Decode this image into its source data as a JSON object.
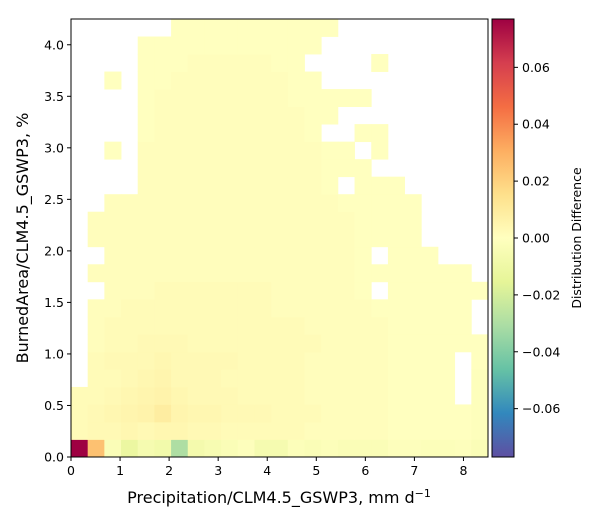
{
  "chart_data": {
    "type": "heatmap",
    "xlabel": "Precipitation/CLM4.5_GSWP3,  mm d",
    "xlabel_sup": "−1",
    "ylabel": "BurnedArea/CLM4.5_GSWP3,  %",
    "colorbar_label": "Distribution Difference",
    "xlim": [
      0,
      8.5
    ],
    "ylim": [
      0,
      4.25
    ],
    "x_ticks": [
      "0",
      "1",
      "2",
      "3",
      "4",
      "5",
      "6",
      "7",
      "8"
    ],
    "y_ticks": [
      "0.0",
      "0.5",
      "1.0",
      "1.5",
      "2.0",
      "2.5",
      "3.0",
      "3.5",
      "4.0"
    ],
    "colorbar_ticks": [
      "0.06",
      "0.04",
      "0.02",
      "0.00",
      "−0.02",
      "−0.04",
      "−0.06"
    ],
    "colorbar_range": [
      -0.077,
      0.077
    ],
    "colormap": "Spectral_r",
    "x_bin_width": 0.34,
    "y_bin_width": 0.17,
    "shape": [
      25,
      25
    ],
    "rows_bottom_to_top": [
      [
        0.077,
        0.025,
        -0.003,
        -0.012,
        -0.006,
        -0.008,
        -0.03,
        -0.007,
        -0.005,
        -0.003,
        -0.001,
        -0.006,
        -0.006,
        -0.002,
        -0.003,
        -0.002,
        -0.003,
        -0.003,
        -0.003,
        -0.001,
        -0.001,
        -0.002,
        -0.002,
        -0.001,
        -0.003
      ],
      [
        0.002,
        0.003,
        0.003,
        0.004,
        0.003,
        0.004,
        0.004,
        0.003,
        0.003,
        0.002,
        0.002,
        0.002,
        0.002,
        0.002,
        0.001,
        0.001,
        0.001,
        0.001,
        0.001,
        0.0,
        0.0,
        0.0,
        0.0,
        0.0,
        -0.001
      ],
      [
        0.002,
        0.003,
        0.004,
        0.005,
        0.006,
        0.009,
        0.005,
        0.004,
        0.004,
        0.003,
        0.003,
        0.003,
        0.002,
        0.002,
        0.002,
        0.001,
        0.001,
        0.001,
        0.001,
        0.0,
        0.0,
        0.0,
        0.0,
        0.0,
        -0.001
      ],
      [
        0.002,
        0.002,
        0.003,
        0.004,
        0.005,
        0.006,
        0.004,
        0.003,
        0.003,
        0.003,
        0.002,
        0.002,
        0.002,
        0.002,
        0.001,
        0.001,
        0.001,
        0.001,
        0.001,
        0.0,
        0.0,
        0.0,
        0.0,
        null,
        -0.001
      ],
      [
        null,
        0.002,
        0.002,
        0.003,
        0.004,
        0.005,
        0.003,
        0.003,
        0.003,
        0.002,
        0.002,
        0.002,
        0.002,
        0.002,
        0.001,
        0.001,
        0.001,
        0.001,
        0.001,
        0.0,
        0.0,
        0.0,
        0.0,
        null,
        -0.001
      ],
      [
        null,
        0.002,
        0.003,
        0.003,
        0.003,
        0.004,
        0.003,
        0.003,
        0.003,
        0.003,
        0.002,
        0.002,
        0.002,
        0.002,
        0.001,
        0.001,
        0.001,
        0.001,
        0.001,
        0.0,
        0.0,
        0.0,
        0.0,
        null,
        0.0
      ],
      [
        null,
        0.001,
        0.002,
        0.002,
        0.003,
        0.003,
        0.003,
        0.002,
        0.002,
        0.002,
        0.002,
        0.002,
        0.002,
        0.002,
        0.002,
        0.001,
        0.001,
        0.001,
        0.001,
        0.0,
        0.0,
        0.0,
        0.0,
        0.0,
        0.0
      ],
      [
        null,
        0.001,
        0.002,
        0.002,
        0.002,
        0.002,
        0.002,
        0.002,
        0.002,
        0.002,
        0.002,
        0.002,
        0.002,
        0.002,
        0.001,
        0.001,
        0.001,
        0.001,
        0.001,
        0.0,
        0.0,
        0.0,
        0.0,
        0.0,
        null
      ],
      [
        null,
        0.001,
        0.001,
        0.002,
        0.002,
        0.002,
        0.002,
        0.002,
        0.002,
        0.002,
        0.002,
        0.002,
        0.001,
        0.001,
        0.001,
        0.001,
        0.001,
        0.001,
        0.0,
        0.0,
        0.0,
        0.0,
        0.0,
        0.0,
        null
      ],
      [
        null,
        null,
        0.001,
        0.001,
        0.001,
        0.002,
        0.002,
        0.002,
        0.002,
        0.002,
        0.002,
        0.002,
        0.001,
        0.001,
        0.001,
        0.001,
        0.001,
        0.0,
        null,
        0.0,
        0.0,
        0.0,
        0.0,
        0.0,
        0.0
      ],
      [
        null,
        0.001,
        0.001,
        0.001,
        0.001,
        0.001,
        0.001,
        0.001,
        0.001,
        0.001,
        0.001,
        0.001,
        0.001,
        0.001,
        0.001,
        0.001,
        0.001,
        0.0,
        0.0,
        0.0,
        0.0,
        0.0,
        0.0,
        0.0,
        null
      ],
      [
        null,
        null,
        0.001,
        0.001,
        0.001,
        0.001,
        0.001,
        0.001,
        0.001,
        0.001,
        0.001,
        0.001,
        0.001,
        0.001,
        0.001,
        0.001,
        0.001,
        0.0,
        null,
        0.0,
        0.0,
        0.0,
        null,
        null,
        null
      ],
      [
        null,
        0.001,
        0.001,
        0.001,
        0.001,
        0.001,
        0.001,
        0.001,
        0.001,
        0.001,
        0.001,
        0.001,
        0.001,
        0.001,
        0.001,
        0.001,
        0.001,
        0.0,
        0.0,
        0.0,
        0.0,
        null,
        null,
        null,
        null
      ],
      [
        null,
        0.001,
        0.001,
        0.001,
        0.001,
        0.001,
        0.001,
        0.001,
        0.001,
        0.001,
        0.001,
        0.001,
        0.001,
        0.001,
        0.001,
        0.001,
        0.001,
        0.0,
        0.0,
        0.0,
        0.0,
        null,
        null,
        null,
        null
      ],
      [
        null,
        null,
        0.001,
        0.001,
        0.001,
        0.001,
        0.001,
        0.001,
        0.001,
        0.001,
        0.001,
        0.001,
        0.001,
        0.001,
        0.001,
        0.001,
        0.0,
        0.0,
        0.0,
        0.0,
        0.0,
        null,
        null,
        null,
        null
      ],
      [
        null,
        null,
        null,
        null,
        0.001,
        0.001,
        0.001,
        0.001,
        0.001,
        0.001,
        0.001,
        0.001,
        0.001,
        0.001,
        0.001,
        0.0,
        null,
        0.0,
        0.0,
        0.0,
        null,
        null,
        null,
        null,
        null
      ],
      [
        null,
        null,
        null,
        null,
        0.001,
        0.001,
        0.001,
        0.001,
        0.001,
        0.001,
        0.001,
        0.001,
        0.001,
        0.001,
        0.001,
        0.0,
        0.0,
        0.0,
        null,
        null,
        null,
        null,
        null,
        null,
        null
      ],
      [
        null,
        null,
        0.0,
        null,
        0.001,
        0.001,
        0.001,
        0.001,
        0.001,
        0.001,
        0.001,
        0.001,
        0.001,
        0.001,
        0.001,
        0.0,
        0.0,
        null,
        0.0,
        null,
        null,
        null,
        null,
        null,
        null
      ],
      [
        null,
        null,
        null,
        null,
        0.0,
        0.001,
        0.001,
        0.001,
        0.001,
        0.001,
        0.001,
        0.001,
        0.001,
        0.001,
        0.0,
        null,
        null,
        0.0,
        0.0,
        null,
        null,
        null,
        null,
        null,
        null
      ],
      [
        null,
        null,
        null,
        null,
        0.0,
        0.001,
        0.001,
        0.001,
        0.001,
        0.001,
        0.001,
        0.001,
        0.001,
        0.001,
        0.0,
        0.0,
        null,
        null,
        null,
        null,
        null,
        null,
        null,
        null,
        null
      ],
      [
        null,
        null,
        null,
        null,
        0.0,
        0.001,
        0.001,
        0.001,
        0.001,
        0.001,
        0.001,
        0.001,
        0.001,
        0.0,
        0.0,
        0.0,
        0.0,
        0.0,
        null,
        null,
        null,
        null,
        null,
        null,
        null
      ],
      [
        null,
        null,
        0.0,
        null,
        0.0,
        0.0,
        0.001,
        0.001,
        0.001,
        0.001,
        0.001,
        0.001,
        0.001,
        0.0,
        0.0,
        null,
        null,
        null,
        null,
        null,
        null,
        null,
        null,
        null,
        null
      ],
      [
        null,
        null,
        null,
        null,
        0.0,
        0.0,
        0.0,
        0.001,
        0.001,
        0.001,
        0.001,
        0.001,
        0.0,
        0.0,
        null,
        null,
        null,
        null,
        0.0,
        null,
        null,
        null,
        null,
        null,
        null
      ],
      [
        null,
        null,
        null,
        null,
        0.0,
        0.0,
        0.0,
        0.0,
        0.0,
        0.0,
        0.0,
        0.0,
        0.0,
        0.0,
        0.0,
        null,
        null,
        null,
        null,
        null,
        null,
        null,
        null,
        null,
        null
      ],
      [
        null,
        null,
        null,
        null,
        null,
        null,
        0.0,
        0.0,
        0.0,
        0.0,
        0.0,
        0.0,
        0.0,
        0.0,
        0.0,
        0.0,
        null,
        null,
        null,
        null,
        null,
        null,
        null,
        null,
        null
      ]
    ]
  }
}
